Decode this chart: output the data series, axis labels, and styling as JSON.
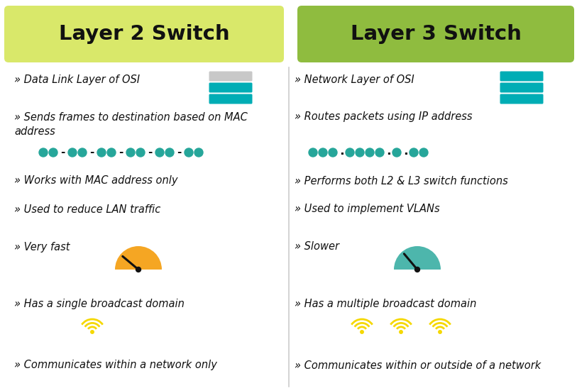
{
  "background_color": "#ffffff",
  "left_header_bg": "#d9e86a",
  "right_header_bg": "#8fbc3f",
  "left_header_text": "Layer 2 Switch",
  "right_header_text": "Layer 3 Switch",
  "header_text_color": "#111111",
  "text_color": "#111111",
  "teal_color": "#00adb5",
  "dot_color": "#26a69a",
  "orange_color": "#f5a623",
  "green_teal_color": "#4db6ac",
  "yellow_wifi": "#f5d800",
  "switch_gray": "#c8c8c8",
  "divider_color": "#cccccc",
  "left_items_row1": "» Data Link Layer of OSI",
  "left_items_row2a": "» Sends frames to destination based on MAC",
  "left_items_row2b": "address",
  "left_items_row3": "» Works with MAC address only",
  "left_items_row4": "» Used to reduce LAN traffic",
  "left_items_row5": "» Very fast",
  "left_items_row6": "» Has a single broadcast domain",
  "left_items_row7": "» Communicates within a network only",
  "right_items_row1": "» Network Layer of OSI",
  "right_items_row2": "» Routes packets using IP address",
  "right_items_row3": "» Performs both L2 & L3 switch functions",
  "right_items_row4": "» Used to implement VLANs",
  "right_items_row5": "» Slower",
  "right_items_row6": "» Has a multiple broadcast domain",
  "right_items_row7": "» Communicates within or outside of a network"
}
